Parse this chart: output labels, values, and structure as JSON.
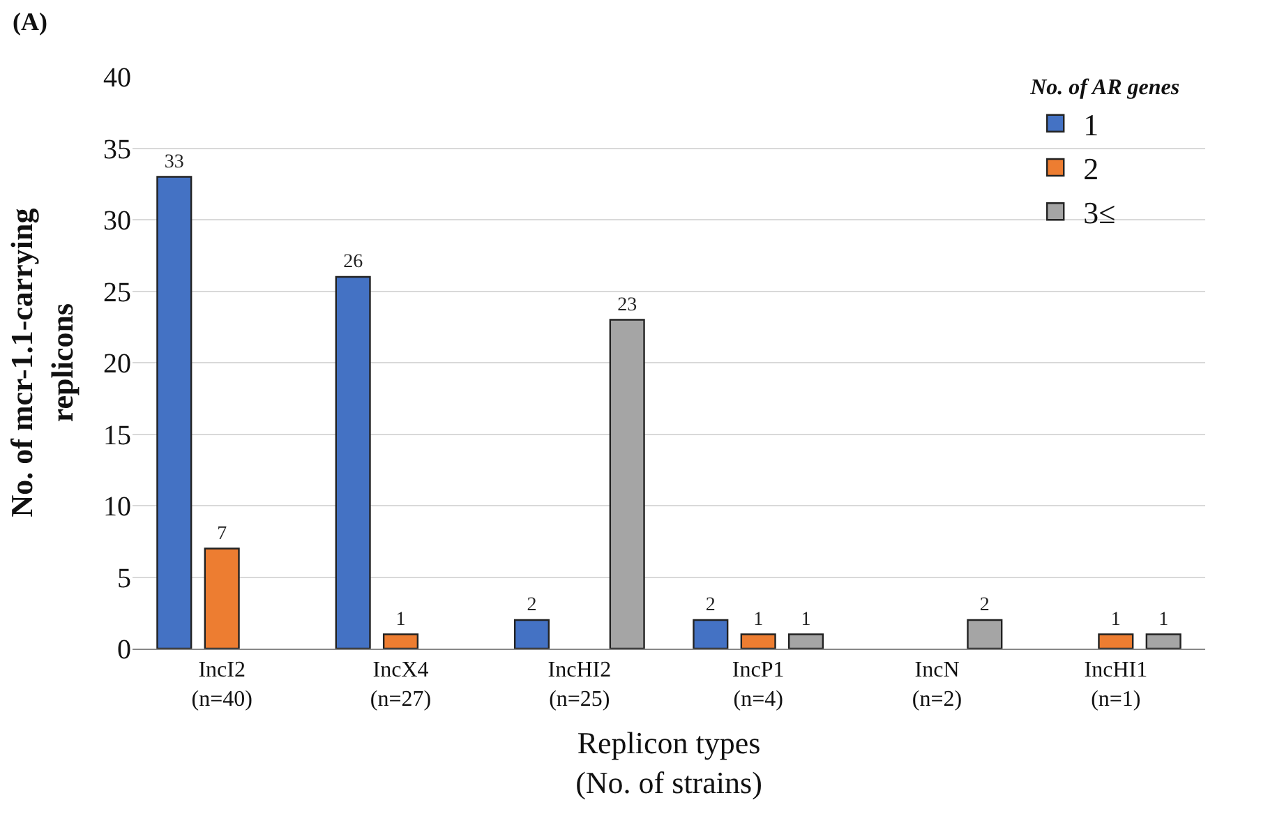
{
  "chart_data": {
    "type": "bar",
    "title": "(A)",
    "xlabel": "Replicon types\n(No. of strains)",
    "ylabel": "No. of mcr-1.1-carrying\nreplicons",
    "legend_title": "No. of AR genes",
    "categories": [
      "IncI2\n(n=40)",
      "IncX4\n(n=27)",
      "IncHI2\n(n=25)",
      "IncP1\n(n=4)",
      "IncN\n(n=2)",
      "IncHI1\n(n=1)"
    ],
    "series": [
      {
        "name": "1",
        "color": "#4472c4",
        "values": [
          33,
          26,
          2,
          2,
          null,
          null
        ]
      },
      {
        "name": "2",
        "color": "#ed7d31",
        "values": [
          7,
          1,
          null,
          1,
          null,
          1
        ]
      },
      {
        "name": "3≤",
        "color": "#a5a5a5",
        "values": [
          null,
          null,
          23,
          1,
          2,
          1
        ]
      }
    ],
    "ylim": [
      0,
      40
    ],
    "yticks": [
      0,
      5,
      10,
      15,
      20,
      25,
      30,
      35,
      40
    ],
    "grid": "y",
    "legend": "top right",
    "data_labels": true
  }
}
